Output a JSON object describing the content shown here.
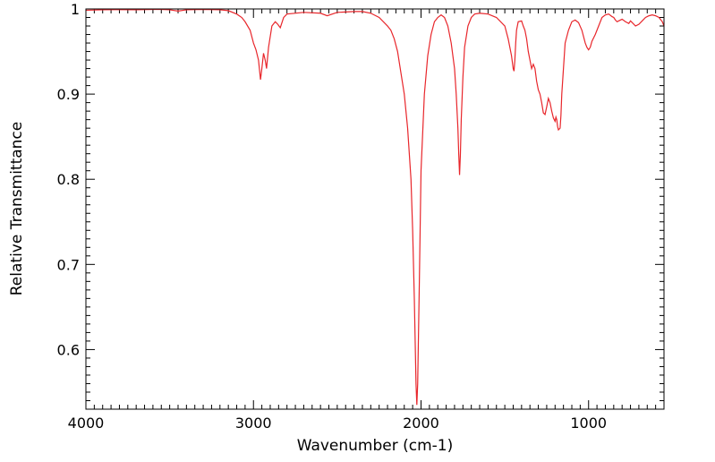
{
  "chart_data": {
    "type": "line",
    "title": "",
    "xlabel": "Wavenumber (cm-1)",
    "ylabel": "Relative Transmittance",
    "xlim": [
      4000,
      550
    ],
    "ylim": [
      0.53,
      1.0
    ],
    "x_ticks": [
      4000,
      3000,
      2000,
      1000
    ],
    "x_tick_labels": [
      "4000",
      "3000",
      "2000",
      "1000"
    ],
    "y_ticks": [
      1.0,
      0.9,
      0.8,
      0.7,
      0.6
    ],
    "y_tick_labels": [
      "1",
      "0.9",
      "0.8",
      "0.7",
      "0.6"
    ],
    "grid": false,
    "line_color": "#e8262b",
    "series": [
      {
        "x": [
          4000,
          3900,
          3800,
          3700,
          3600,
          3550,
          3500,
          3450,
          3400,
          3300,
          3200,
          3150,
          3100,
          3070,
          3050,
          3020,
          3000,
          2985,
          2970,
          2958,
          2950,
          2940,
          2930,
          2922,
          2910,
          2890,
          2870,
          2855,
          2840,
          2820,
          2800,
          2700,
          2600,
          2560,
          2500,
          2400,
          2350,
          2300,
          2250,
          2200,
          2180,
          2160,
          2140,
          2120,
          2100,
          2080,
          2060,
          2050,
          2040,
          2035,
          2030,
          2025,
          2020,
          2010,
          2000,
          1980,
          1960,
          1940,
          1920,
          1900,
          1880,
          1860,
          1840,
          1820,
          1800,
          1790,
          1780,
          1775,
          1770,
          1765,
          1760,
          1750,
          1740,
          1720,
          1700,
          1680,
          1650,
          1600,
          1550,
          1500,
          1480,
          1460,
          1450,
          1445,
          1440,
          1435,
          1430,
          1420,
          1400,
          1390,
          1380,
          1370,
          1360,
          1350,
          1340,
          1330,
          1320,
          1310,
          1300,
          1290,
          1280,
          1270,
          1260,
          1250,
          1240,
          1230,
          1220,
          1210,
          1200,
          1195,
          1190,
          1185,
          1180,
          1170,
          1165,
          1160,
          1150,
          1140,
          1120,
          1100,
          1080,
          1060,
          1040,
          1020,
          1010,
          1000,
          990,
          980,
          960,
          940,
          920,
          900,
          880,
          860,
          850,
          840,
          830,
          820,
          800,
          780,
          760,
          750,
          740,
          720,
          700,
          680,
          660,
          640,
          620,
          600,
          580,
          560,
          550
        ],
        "y": [
          0.9985,
          0.999,
          0.9992,
          0.999,
          0.9995,
          0.9995,
          0.999,
          0.9975,
          0.999,
          0.9995,
          0.999,
          0.998,
          0.994,
          0.99,
          0.985,
          0.975,
          0.96,
          0.952,
          0.94,
          0.917,
          0.93,
          0.948,
          0.94,
          0.93,
          0.955,
          0.98,
          0.985,
          0.982,
          0.978,
          0.99,
          0.994,
          0.996,
          0.995,
          0.992,
          0.996,
          0.997,
          0.997,
          0.995,
          0.99,
          0.98,
          0.975,
          0.965,
          0.95,
          0.925,
          0.9,
          0.86,
          0.8,
          0.74,
          0.66,
          0.61,
          0.56,
          0.535,
          0.56,
          0.68,
          0.81,
          0.9,
          0.945,
          0.97,
          0.985,
          0.99,
          0.993,
          0.99,
          0.98,
          0.96,
          0.93,
          0.9,
          0.86,
          0.83,
          0.805,
          0.83,
          0.87,
          0.92,
          0.955,
          0.98,
          0.99,
          0.994,
          0.995,
          0.994,
          0.99,
          0.98,
          0.965,
          0.945,
          0.93,
          0.927,
          0.94,
          0.96,
          0.975,
          0.985,
          0.986,
          0.98,
          0.975,
          0.965,
          0.95,
          0.94,
          0.93,
          0.935,
          0.93,
          0.915,
          0.905,
          0.9,
          0.89,
          0.878,
          0.876,
          0.885,
          0.895,
          0.89,
          0.88,
          0.872,
          0.868,
          0.873,
          0.87,
          0.862,
          0.858,
          0.86,
          0.875,
          0.9,
          0.93,
          0.96,
          0.975,
          0.985,
          0.987,
          0.984,
          0.975,
          0.96,
          0.955,
          0.952,
          0.955,
          0.962,
          0.97,
          0.98,
          0.99,
          0.993,
          0.994,
          0.991,
          0.99,
          0.987,
          0.985,
          0.986,
          0.988,
          0.985,
          0.983,
          0.986,
          0.984,
          0.98,
          0.982,
          0.986,
          0.99,
          0.992,
          0.993,
          0.992,
          0.99,
          0.985,
          0.98
        ]
      }
    ]
  }
}
